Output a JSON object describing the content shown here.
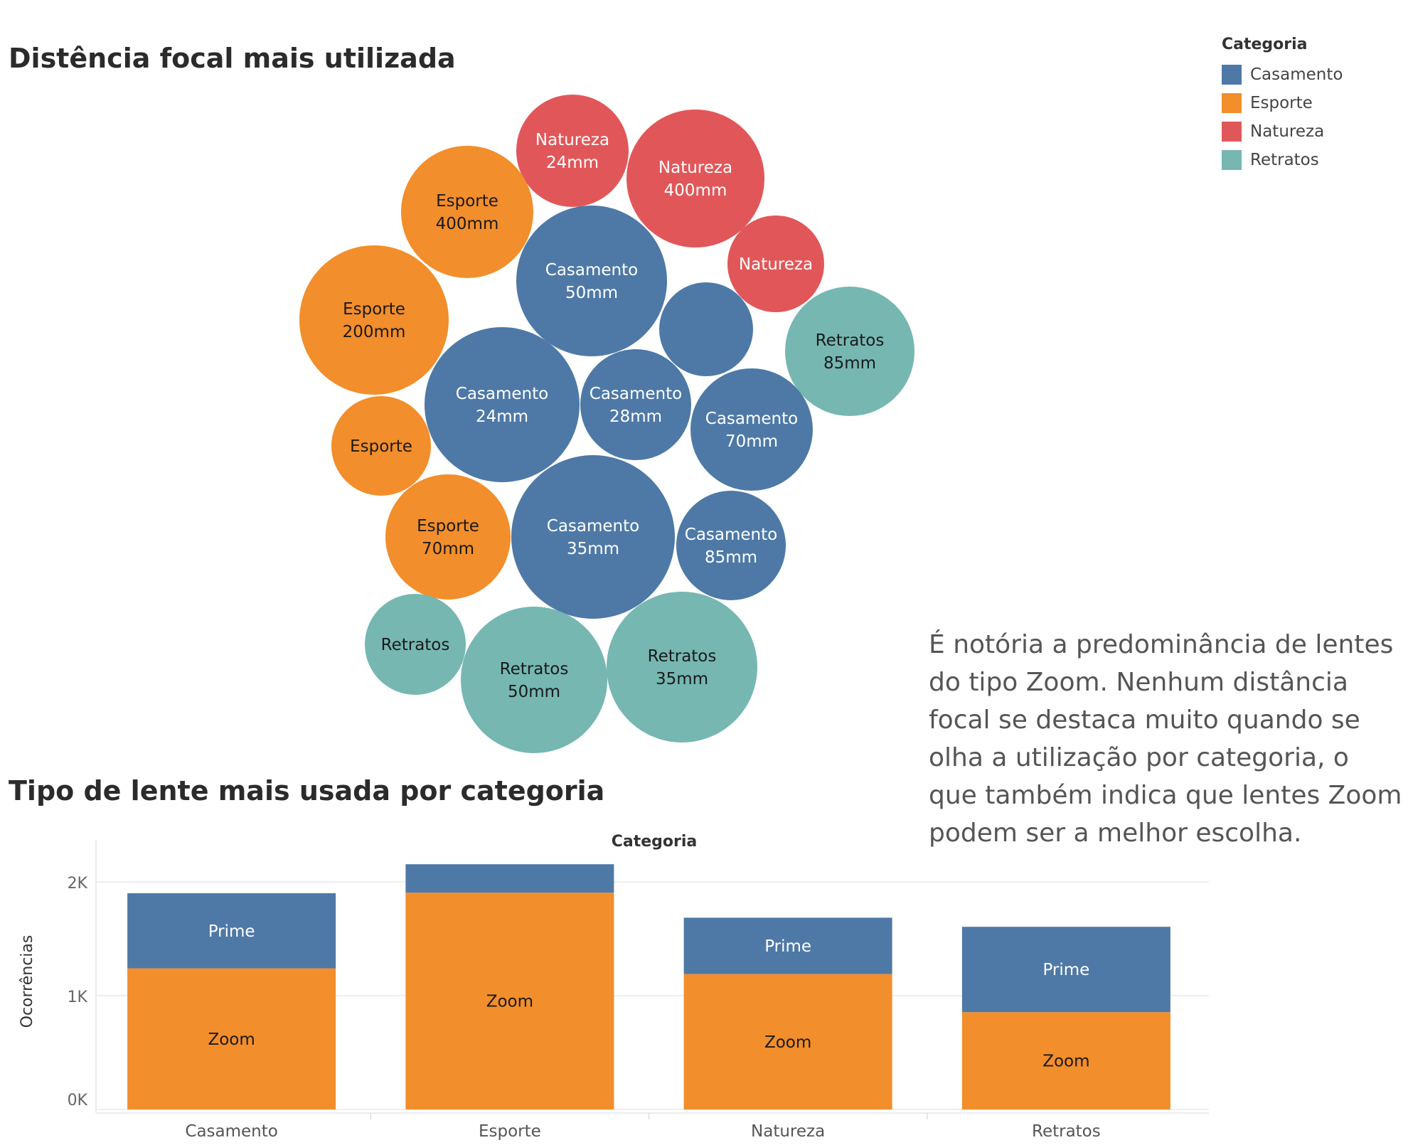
{
  "colors": {
    "Casamento": "#4e79a7",
    "Esporte": "#f28e2b",
    "Natureza": "#e15759",
    "Retratos": "#76b7b2"
  },
  "legend": {
    "title": "Categoria",
    "items": [
      "Casamento",
      "Esporte",
      "Natureza",
      "Retratos"
    ]
  },
  "note": "É notória a predominância de lentes do tipo Zoom. Nenhum distância focal se destaca muito quando se olha a utilização por categoria, o que também indica que lentes Zoom podem ser a melhor escolha.",
  "chart_data": [
    {
      "type": "bubble",
      "title": "Distência focal mais utilizada",
      "bubbles": [
        {
          "category": "Natureza",
          "focal": "24mm",
          "label": true
        },
        {
          "category": "Natureza",
          "focal": "400mm",
          "label": true
        },
        {
          "category": "Natureza",
          "focal": "",
          "label": true
        },
        {
          "category": "Esporte",
          "focal": "400mm",
          "label": true
        },
        {
          "category": "Casamento",
          "focal": "50mm",
          "label": true
        },
        {
          "category": "Casamento",
          "focal": "",
          "label": false
        },
        {
          "category": "Esporte",
          "focal": "200mm",
          "label": true
        },
        {
          "category": "Retratos",
          "focal": "85mm",
          "label": true
        },
        {
          "category": "Casamento",
          "focal": "24mm",
          "label": true
        },
        {
          "category": "Casamento",
          "focal": "28mm",
          "label": true
        },
        {
          "category": "Casamento",
          "focal": "70mm",
          "label": true
        },
        {
          "category": "Esporte",
          "focal": "",
          "label": true
        },
        {
          "category": "Esporte",
          "focal": "70mm",
          "label": true
        },
        {
          "category": "Casamento",
          "focal": "35mm",
          "label": true
        },
        {
          "category": "Casamento",
          "focal": "85mm",
          "label": true
        },
        {
          "category": "Retratos",
          "focal": "",
          "label": true
        },
        {
          "category": "Retratos",
          "focal": "50mm",
          "label": true
        },
        {
          "category": "Retratos",
          "focal": "35mm",
          "label": true
        }
      ]
    },
    {
      "type": "bar",
      "stacked": true,
      "title": "Tipo de lente mais usada por categoria",
      "header": "Categoria",
      "ylabel": "Ocorrências",
      "categories": [
        "Casamento",
        "Esporte",
        "Natureza",
        "Retratos"
      ],
      "yticks": [
        "0K",
        "1K",
        "2K"
      ],
      "ylim": [
        0,
        2250
      ],
      "series": [
        {
          "name": "Zoom",
          "values": [
            1240,
            1905,
            1190,
            855
          ],
          "color": "#f28e2b",
          "labels": [
            "Zoom",
            "Zoom",
            "Zoom",
            "Zoom"
          ]
        },
        {
          "name": "Prime",
          "values": [
            660,
            250,
            495,
            750
          ],
          "color": "#4e79a7",
          "labels": [
            "Prime",
            "",
            "Prime",
            "Prime"
          ]
        }
      ]
    }
  ]
}
